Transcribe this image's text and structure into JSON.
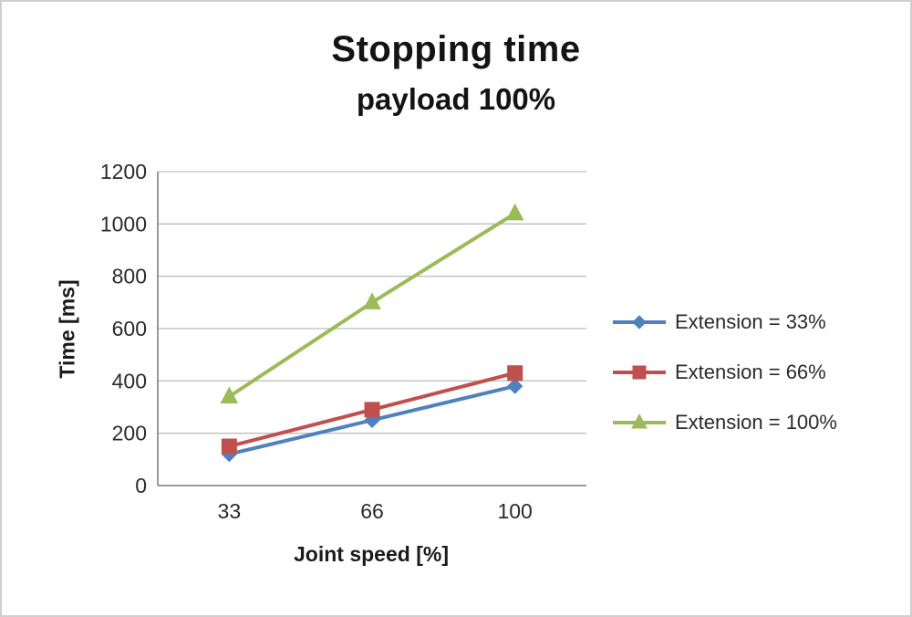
{
  "chart_data": {
    "type": "line",
    "title": "Stopping time",
    "subtitle": "payload 100%",
    "xlabel": "Joint speed [%]",
    "ylabel": "Time [ms]",
    "x": [
      33,
      66,
      100
    ],
    "series": [
      {
        "name": "Extension = 33%",
        "color": "#4f81bd",
        "marker": "diamond",
        "values": [
          120,
          250,
          380
        ]
      },
      {
        "name": "Extension = 66%",
        "color": "#c0504d",
        "marker": "square",
        "values": [
          150,
          290,
          430
        ]
      },
      {
        "name": "Extension = 100%",
        "color": "#9bbb59",
        "marker": "triangle",
        "values": [
          340,
          700,
          1040
        ]
      }
    ],
    "ylim": [
      0,
      1200
    ],
    "ytick_step": 200,
    "grid": true,
    "gridline_color": "#bfbfbf",
    "axis_color": "#7f7f7f",
    "legend_position": "right"
  }
}
